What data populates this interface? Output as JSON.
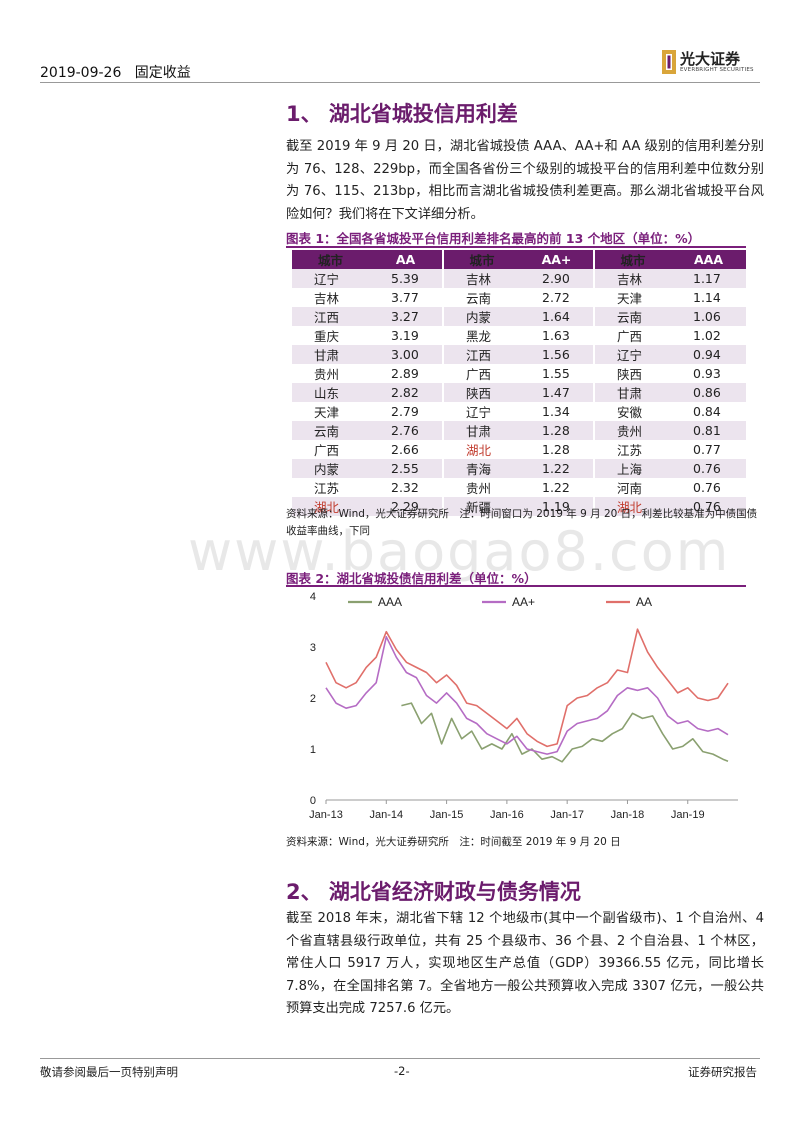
{
  "header": {
    "date": "2019-09-26",
    "category": "固定收益",
    "logo_cn": "光大证券",
    "logo_en": "EVERBRIGHT SECURITIES"
  },
  "section1": {
    "title": "1、 湖北省城投信用利差",
    "para": "截至 2019 年 9 月 20 日，湖北省城投债 AAA、AA+和 AA 级别的信用利差分别为 76、128、229bp，而全国各省份三个级别的城投平台的信用利差中位数分别为 76、115、213bp，相比而言湖北省城投债利差更高。那么湖北省城投平台风险如何？我们将在下文详细分析。"
  },
  "figure1": {
    "title": "图表 1：全国各省城投平台信用利差排名最高的前 13 个地区（单位：%）",
    "headers": [
      "城市",
      "AA",
      "城市",
      "AA+",
      "城市",
      "AAA"
    ],
    "rows": [
      [
        "辽宁",
        "5.39",
        "吉林",
        "2.90",
        "吉林",
        "1.17"
      ],
      [
        "吉林",
        "3.77",
        "云南",
        "2.72",
        "天津",
        "1.14"
      ],
      [
        "江西",
        "3.27",
        "内蒙",
        "1.64",
        "云南",
        "1.06"
      ],
      [
        "重庆",
        "3.19",
        "黑龙",
        "1.63",
        "广西",
        "1.02"
      ],
      [
        "甘肃",
        "3.00",
        "江西",
        "1.56",
        "辽宁",
        "0.94"
      ],
      [
        "贵州",
        "2.89",
        "广西",
        "1.55",
        "陕西",
        "0.93"
      ],
      [
        "山东",
        "2.82",
        "陕西",
        "1.47",
        "甘肃",
        "0.86"
      ],
      [
        "天津",
        "2.79",
        "辽宁",
        "1.34",
        "安徽",
        "0.84"
      ],
      [
        "云南",
        "2.76",
        "甘肃",
        "1.28",
        "贵州",
        "0.81"
      ],
      [
        "广西",
        "2.66",
        "湖北",
        "1.28",
        "江苏",
        "0.77"
      ],
      [
        "内蒙",
        "2.55",
        "青海",
        "1.22",
        "上海",
        "0.76"
      ],
      [
        "江苏",
        "2.32",
        "贵州",
        "1.22",
        "河南",
        "0.76"
      ],
      [
        "湖北",
        "2.29",
        "新疆",
        "1.19",
        "湖北",
        "0.76"
      ]
    ],
    "highlight_city": "湖北",
    "highlight_color": "#c0392b",
    "header_color": "#6b1c6c",
    "note": "资料来源：Wind，光大证券研究所　注：时间窗口为 2019 年 9 月 20 日，利差比较基准为中债国债收益率曲线，下同"
  },
  "watermark": "www.baogao8.com",
  "figure2": {
    "title": "图表 2：湖北省城投债信用利差（单位：%）",
    "note": "资料来源：Wind，光大证券研究所　注：时间截至 2019 年 9 月 20 日"
  },
  "chart_data": {
    "type": "line",
    "title": "",
    "xlabel": "",
    "ylabel": "",
    "ylim": [
      0,
      4
    ],
    "yticks": [
      "0",
      "1",
      "2",
      "3",
      "4"
    ],
    "xticks": [
      "Jan-13",
      "Jan-14",
      "Jan-15",
      "Jan-16",
      "Jan-17",
      "Jan-18",
      "Jan-19"
    ],
    "grid": false,
    "legend": "top",
    "series": [
      {
        "name": "AAA",
        "color": "#8aa070",
        "x": [
          "2014-04",
          "2014-06",
          "2014-08",
          "2014-10",
          "2014-12",
          "2015-02",
          "2015-04",
          "2015-06",
          "2015-08",
          "2015-10",
          "2015-12",
          "2016-02",
          "2016-04",
          "2016-06",
          "2016-08",
          "2016-10",
          "2016-12",
          "2017-02",
          "2017-04",
          "2017-06",
          "2017-08",
          "2017-10",
          "2017-12",
          "2018-02",
          "2018-04",
          "2018-06",
          "2018-08",
          "2018-10",
          "2018-12",
          "2019-02",
          "2019-04",
          "2019-06",
          "2019-08",
          "2019-09"
        ],
        "values": [
          1.85,
          1.9,
          1.5,
          1.7,
          1.1,
          1.6,
          1.2,
          1.35,
          1.0,
          1.1,
          1.0,
          1.3,
          0.9,
          1.0,
          0.8,
          0.85,
          0.75,
          1.0,
          1.05,
          1.2,
          1.15,
          1.3,
          1.4,
          1.7,
          1.6,
          1.65,
          1.3,
          1.0,
          1.05,
          1.2,
          0.95,
          0.9,
          0.8,
          0.76
        ]
      },
      {
        "name": "AA+",
        "color": "#b56cc4",
        "x": [
          "2013-01",
          "2013-03",
          "2013-05",
          "2013-07",
          "2013-09",
          "2013-11",
          "2014-01",
          "2014-03",
          "2014-05",
          "2014-07",
          "2014-09",
          "2014-11",
          "2015-01",
          "2015-03",
          "2015-05",
          "2015-07",
          "2015-09",
          "2015-11",
          "2016-01",
          "2016-03",
          "2016-05",
          "2016-07",
          "2016-09",
          "2016-11",
          "2017-01",
          "2017-03",
          "2017-05",
          "2017-07",
          "2017-09",
          "2017-11",
          "2018-01",
          "2018-03",
          "2018-05",
          "2018-07",
          "2018-09",
          "2018-11",
          "2019-01",
          "2019-03",
          "2019-05",
          "2019-07",
          "2019-09"
        ],
        "values": [
          2.2,
          1.9,
          1.8,
          1.85,
          2.1,
          2.3,
          3.2,
          2.8,
          2.5,
          2.4,
          2.05,
          1.9,
          2.1,
          1.9,
          1.6,
          1.5,
          1.3,
          1.2,
          1.1,
          1.25,
          1.0,
          0.95,
          0.9,
          0.95,
          1.35,
          1.5,
          1.55,
          1.6,
          1.75,
          2.05,
          2.2,
          2.15,
          2.2,
          2.0,
          1.65,
          1.5,
          1.55,
          1.4,
          1.35,
          1.4,
          1.28
        ]
      },
      {
        "name": "AA",
        "color": "#e06f6a",
        "x": [
          "2013-01",
          "2013-03",
          "2013-05",
          "2013-07",
          "2013-09",
          "2013-11",
          "2014-01",
          "2014-03",
          "2014-05",
          "2014-07",
          "2014-09",
          "2014-11",
          "2015-01",
          "2015-03",
          "2015-05",
          "2015-07",
          "2015-09",
          "2015-11",
          "2016-01",
          "2016-03",
          "2016-05",
          "2016-07",
          "2016-09",
          "2016-11",
          "2017-01",
          "2017-03",
          "2017-05",
          "2017-07",
          "2017-09",
          "2017-11",
          "2018-01",
          "2018-03",
          "2018-05",
          "2018-07",
          "2018-09",
          "2018-11",
          "2019-01",
          "2019-03",
          "2019-05",
          "2019-07",
          "2019-09"
        ],
        "values": [
          2.7,
          2.3,
          2.2,
          2.3,
          2.6,
          2.8,
          3.3,
          2.95,
          2.7,
          2.6,
          2.5,
          2.3,
          2.45,
          2.25,
          1.9,
          1.85,
          1.7,
          1.55,
          1.4,
          1.6,
          1.3,
          1.15,
          1.05,
          1.1,
          1.85,
          2.0,
          2.05,
          2.2,
          2.3,
          2.55,
          2.5,
          3.35,
          2.9,
          2.6,
          2.35,
          2.1,
          2.2,
          2.0,
          1.95,
          2.0,
          2.29
        ]
      }
    ]
  },
  "section2": {
    "title": "2、 湖北省经济财政与债务情况",
    "para": "截至 2018 年末，湖北省下辖 12 个地级市(其中一个副省级市)、1 个自治州、4 个省直辖县级行政单位，共有 25 个县级市、36 个县、2 个自治县、1 个林区，常住人口 5917 万人，实现地区生产总值（GDP）39366.55 亿元，同比增长 7.8%，在全国排名第 7。全省地方一般公共预算收入完成 3307 亿元，一般公共预算支出完成 7257.6 亿元。"
  },
  "footer": {
    "left": "敬请参阅最后一页特别声明",
    "page": "-2-",
    "right": "证券研究报告"
  }
}
